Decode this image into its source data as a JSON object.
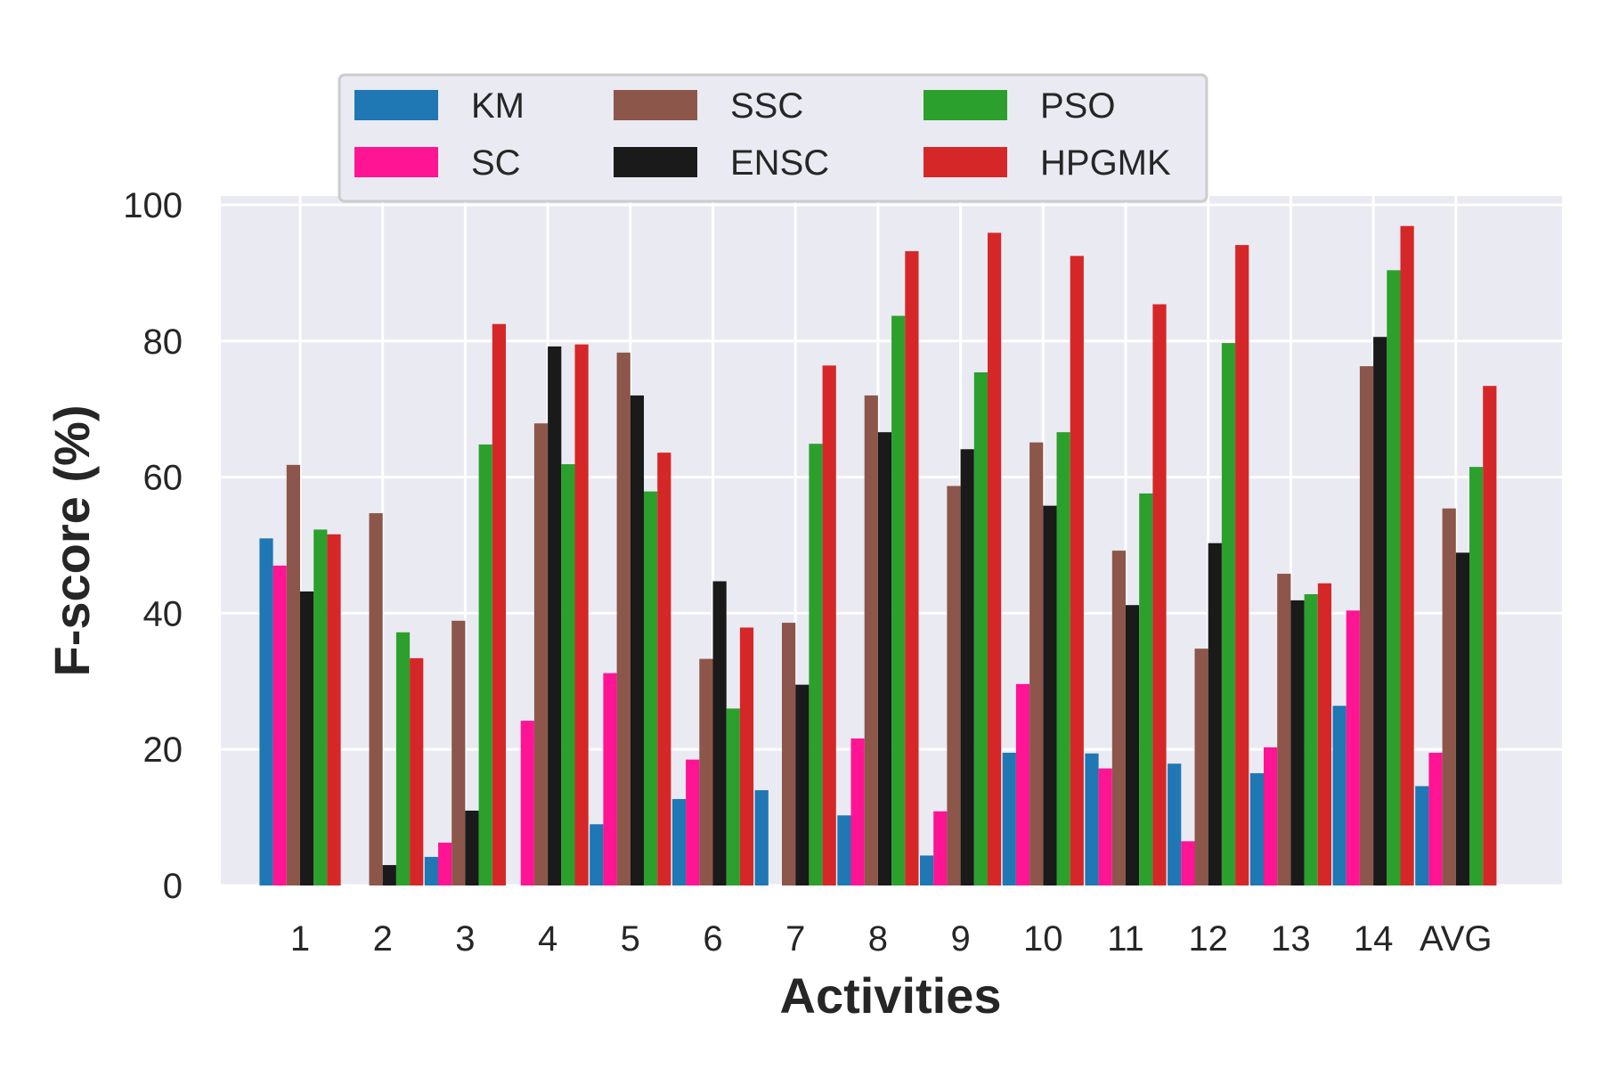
{
  "chart_data": {
    "type": "bar",
    "xlabel": "Activities",
    "ylabel": "F-score (%)",
    "ylim": [
      0,
      100
    ],
    "yticks": [
      "0",
      "20",
      "40",
      "60",
      "80",
      "100"
    ],
    "grid": true,
    "legend_position": "top-center",
    "categories": [
      "1",
      "2",
      "3",
      "4",
      "5",
      "6",
      "7",
      "8",
      "9",
      "10",
      "11",
      "12",
      "13",
      "14",
      "AVG"
    ],
    "series": [
      {
        "name": "KM",
        "color": "#1f77b4",
        "values": [
          51.0,
          0,
          4.2,
          0,
          9.0,
          12.7,
          14.0,
          10.3,
          4.4,
          19.5,
          19.4,
          17.9,
          16.5,
          26.4,
          14.6
        ]
      },
      {
        "name": "SC",
        "color": "#ff1493",
        "values": [
          47.0,
          0,
          6.3,
          24.2,
          31.2,
          18.5,
          0,
          21.6,
          10.9,
          29.6,
          17.2,
          6.5,
          20.3,
          40.4,
          19.5
        ]
      },
      {
        "name": "SSC",
        "color": "#8c564b",
        "values": [
          61.8,
          54.7,
          38.9,
          67.9,
          78.3,
          33.3,
          38.6,
          72.0,
          58.7,
          65.1,
          49.2,
          34.8,
          45.8,
          76.3,
          55.4
        ]
      },
      {
        "name": "ENSC",
        "color": "#1a1a1a",
        "values": [
          43.2,
          3.0,
          11.0,
          79.2,
          72.0,
          44.7,
          29.5,
          66.6,
          64.1,
          55.8,
          41.2,
          50.3,
          41.9,
          80.6,
          48.9
        ]
      },
      {
        "name": "PSO",
        "color": "#2ca02c",
        "values": [
          52.3,
          37.2,
          64.8,
          61.9,
          57.9,
          26.0,
          64.9,
          83.7,
          75.4,
          66.6,
          57.6,
          79.7,
          42.8,
          90.4,
          61.5
        ]
      },
      {
        "name": "HPGMK",
        "color": "#d62728",
        "values": [
          51.6,
          33.4,
          82.5,
          79.5,
          63.6,
          37.9,
          76.4,
          93.2,
          95.9,
          92.5,
          85.4,
          94.1,
          44.4,
          96.9,
          73.4
        ]
      }
    ]
  }
}
